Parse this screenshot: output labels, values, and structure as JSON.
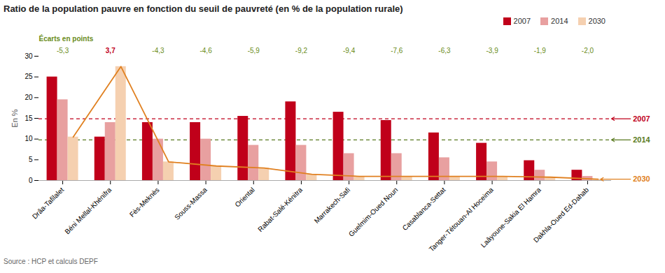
{
  "chart_data": {
    "type": "bar",
    "title": "Ratio de la population pauvre en fonction du seuil de pauvreté (en % de la population rurale)",
    "ylabel": "En %",
    "source": "Source : HCP et calculs DEPF",
    "categories": [
      "Drâa-Tafilalet",
      "Béni Mellal-Khénifra",
      "Fès-Meknès",
      "Souss-Massa",
      "Oriental",
      "Rabat-Salé-Kénitra",
      "Marrakech-Safi",
      "Guelmim-Oued Noun",
      "Casablanca-Settat",
      "Tanger-Tétouan-Al Hoceima",
      "Laâyoune-Sakia El Hamra",
      "Dakhla-Oued Ed-Dahab"
    ],
    "series": [
      {
        "name": "2007",
        "color": "#c0001a",
        "values": [
          25.0,
          10.5,
          14.0,
          14.0,
          15.5,
          19.0,
          16.5,
          14.5,
          11.5,
          9.0,
          4.8,
          2.5
        ]
      },
      {
        "name": "2014",
        "color": "#e8a0a0",
        "values": [
          19.5,
          14.0,
          10.0,
          10.0,
          8.5,
          8.5,
          6.5,
          6.5,
          5.5,
          4.5,
          2.5,
          1.0
        ]
      },
      {
        "name": "2030",
        "color": "#f5d0b0",
        "values": [
          10.5,
          27.5,
          4.5,
          3.5,
          3.0,
          1.5,
          1.0,
          1.0,
          1.0,
          1.0,
          0.8,
          0.3
        ]
      },
      {
        "name": "2030",
        "type": "line",
        "color": "#e08020",
        "values": [
          10.5,
          27.5,
          4.5,
          3.5,
          3.0,
          1.5,
          1.0,
          1.0,
          1.0,
          1.0,
          0.8,
          0.3
        ]
      }
    ],
    "hlines": [
      {
        "label": "2007",
        "value": 14.9,
        "color": "#c0001a",
        "line_style": "dashed"
      },
      {
        "label": "2014",
        "value": 9.8,
        "color": "#5a7a20",
        "line_style": "dashed"
      }
    ],
    "ecarts": {
      "label": "Écarts en points",
      "color": "#6a8c1a",
      "values": [
        -5.3,
        3.7,
        -4.3,
        -4.6,
        -5.9,
        -9.2,
        -9.4,
        -7.6,
        -6.3,
        -3.9,
        -1.9,
        -2.0
      ],
      "value_labels": [
        "-5,3",
        "3,7",
        "-4,3",
        "-4,6",
        "-5,9",
        "-9,2",
        "-9,4",
        "-7,6",
        "-6,3",
        "-3,9",
        "-1,9",
        "-2,0"
      ],
      "colors": [
        "#6a8c1a",
        "#c0001a",
        "#6a8c1a",
        "#6a8c1a",
        "#6a8c1a",
        "#6a8c1a",
        "#6a8c1a",
        "#6a8c1a",
        "#6a8c1a",
        "#6a8c1a",
        "#6a8c1a",
        "#6a8c1a"
      ]
    },
    "ylim": [
      0,
      30
    ],
    "yticks": [
      0,
      5,
      10,
      15,
      20,
      25,
      30
    ],
    "grid": false,
    "legend": "upper right"
  }
}
